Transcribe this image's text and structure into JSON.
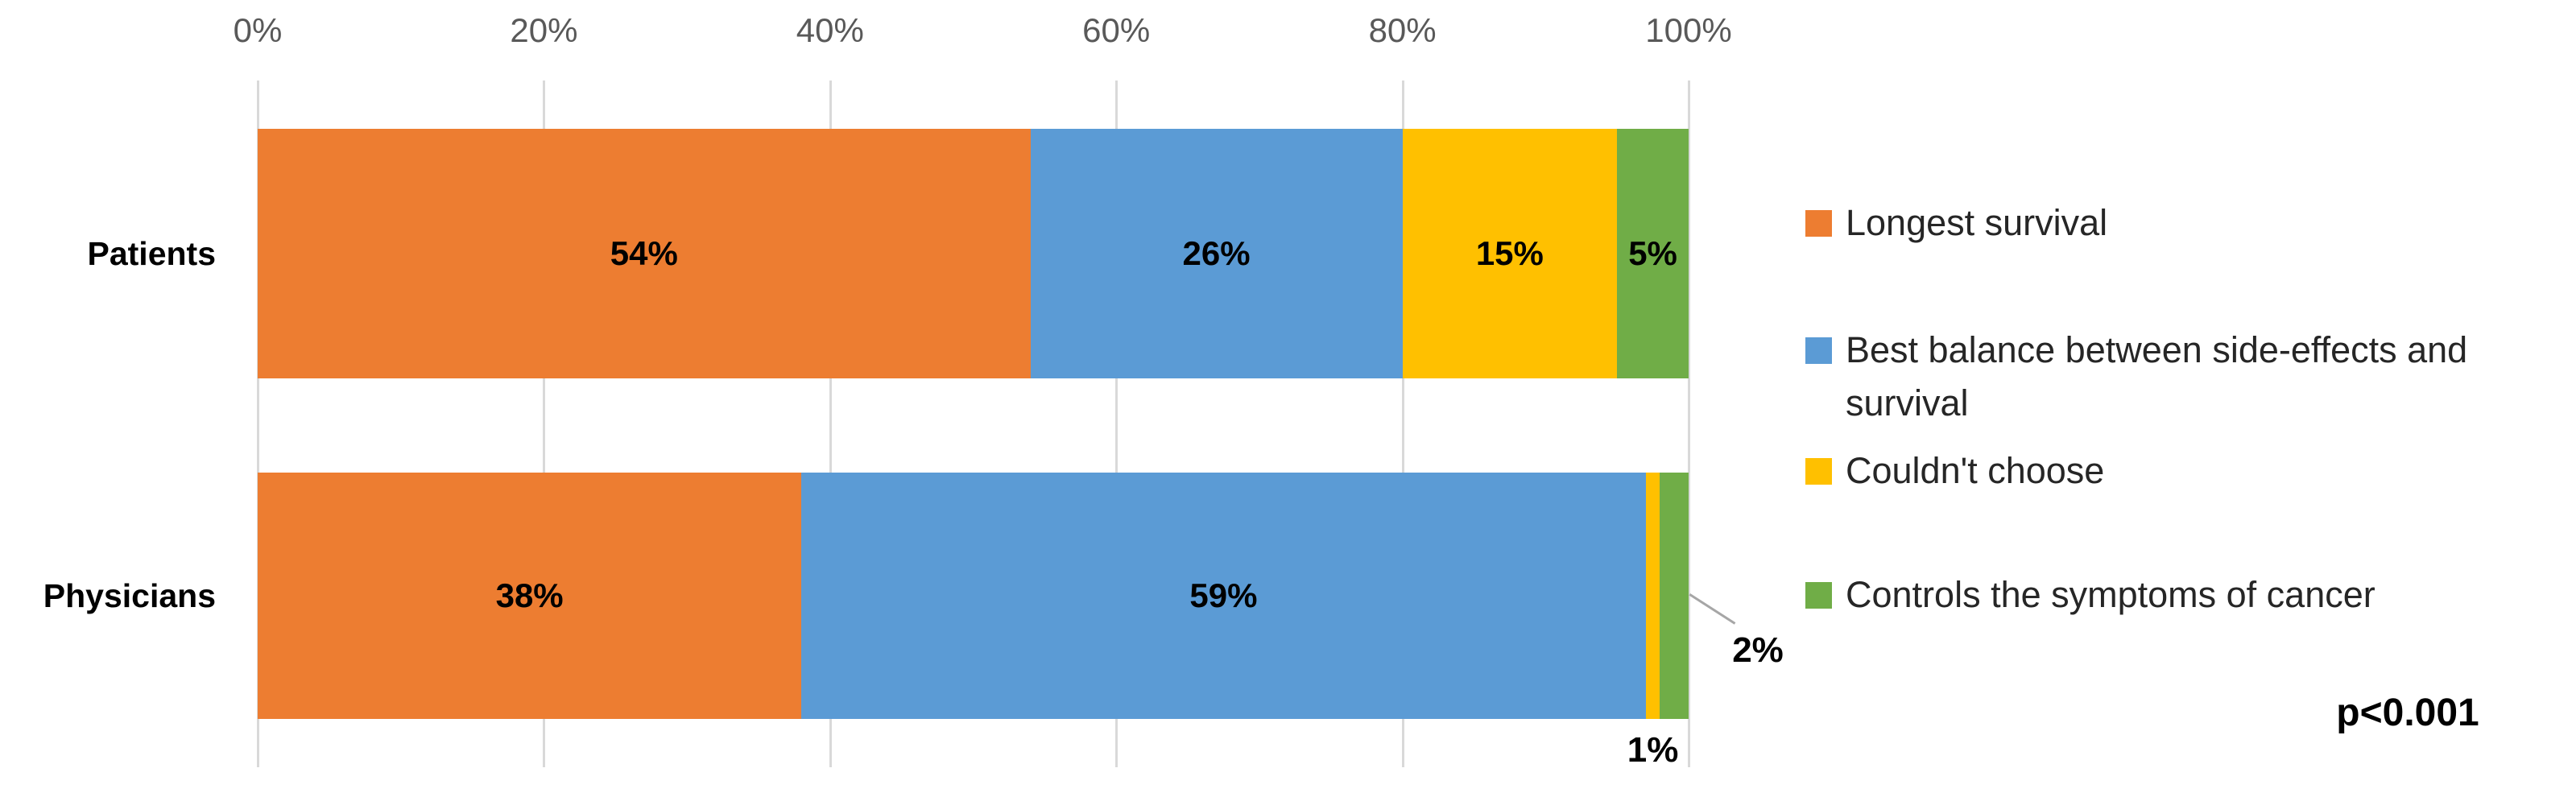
{
  "chart_data": {
    "type": "bar",
    "orientation": "horizontal",
    "stacked": true,
    "unit": "%",
    "title": "",
    "categories": [
      "Patients",
      "Physicians"
    ],
    "series": [
      {
        "name": "Longest survival",
        "color": "#ED7D31",
        "values": [
          54,
          38
        ]
      },
      {
        "name": "Best balance between side-effects and survival",
        "color": "#5B9BD5",
        "values": [
          26,
          59
        ]
      },
      {
        "name": "Couldn't choose",
        "color": "#FFC000",
        "values": [
          15,
          1
        ]
      },
      {
        "name": "Controls the symptoms of cancer",
        "color": "#70AD47",
        "values": [
          5,
          2
        ]
      }
    ],
    "x_axis": {
      "position": "top",
      "min": 0,
      "max": 100,
      "tick_step": 20,
      "tick_labels": [
        "0%",
        "20%",
        "40%",
        "60%",
        "80%",
        "100%"
      ],
      "grid": true
    },
    "data_labels": {
      "Patients": [
        "54%",
        "26%",
        "15%",
        "5%"
      ],
      "Physicians": [
        "38%",
        "59%",
        "1%",
        "2%"
      ],
      "note": "small Physicians segments labeled outside the bar; 2% has a leader line"
    },
    "legend_position": "right",
    "annotation": "p<0.001"
  },
  "legend": {
    "items": [
      {
        "label": "Longest survival",
        "color": "#ED7D31"
      },
      {
        "label": "Best balance between side-effects and\nsurvival",
        "color": "#5B9BD5"
      },
      {
        "label": "Couldn't choose",
        "color": "#FFC000"
      },
      {
        "label": "Controls the symptoms of cancer",
        "color": "#70AD47"
      }
    ]
  },
  "annotation": {
    "p_value": "p<0.001"
  },
  "colors": {
    "gridline": "#D9D9D9",
    "axis_text": "#595959",
    "leader_line": "#A6A6A6",
    "label_text": "#000000"
  }
}
